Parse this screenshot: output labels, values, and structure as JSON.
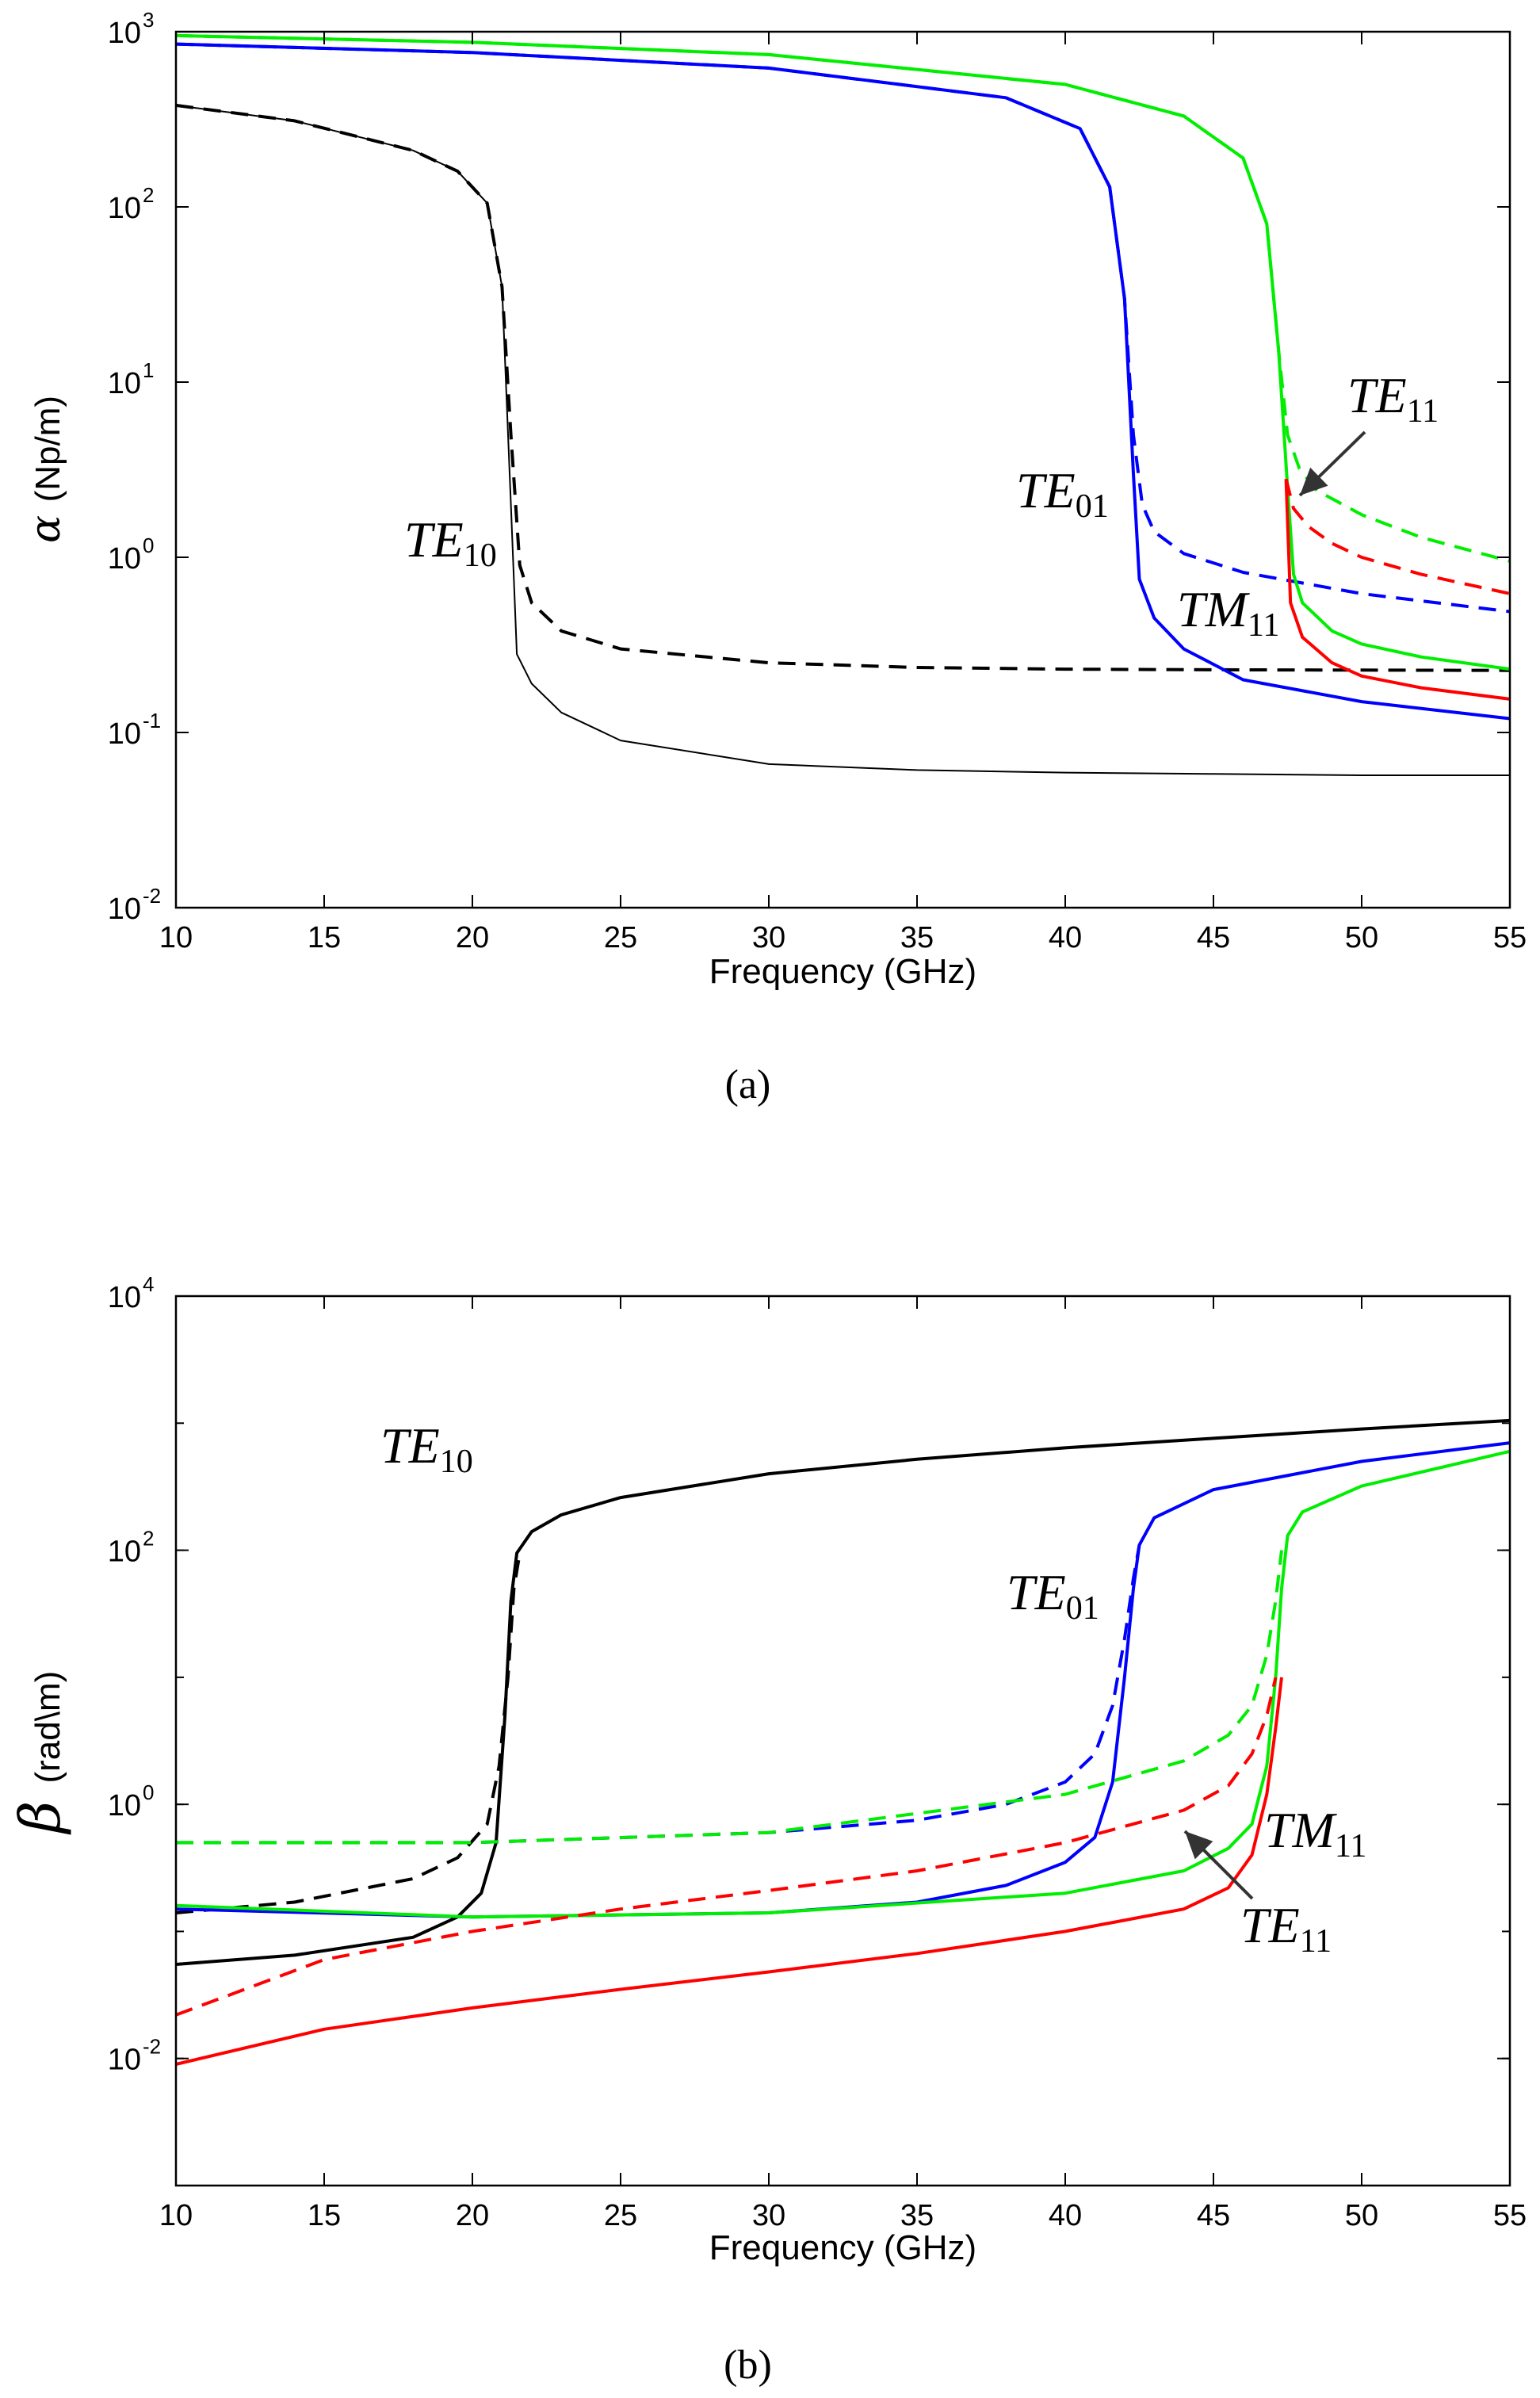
{
  "chart_data": [
    {
      "type": "line",
      "panel_caption": "(a)",
      "xlabel": "Frequency (GHz)",
      "ylabel_symbol": "α",
      "ylabel_unit": "(Np/m)",
      "xscale": "linear",
      "yscale": "log",
      "xlim": [
        10,
        55
      ],
      "ylim": [
        0.01,
        1000
      ],
      "xticks": [
        "10",
        "15",
        "20",
        "25",
        "30",
        "35",
        "40",
        "45",
        "50",
        "55"
      ],
      "yticks": [
        {
          "base": "10",
          "exp": "-2"
        },
        {
          "base": "10",
          "exp": "-1"
        },
        {
          "base": "10",
          "exp": "0"
        },
        {
          "base": "10",
          "exp": "1"
        },
        {
          "base": "10",
          "exp": "2"
        },
        {
          "base": "10",
          "exp": "3"
        }
      ],
      "grid": false,
      "series": [
        {
          "color": "#000000",
          "dash": "solid",
          "width": 2,
          "x": [
            10,
            14,
            18,
            19.5,
            20.5,
            21.0,
            21.3,
            21.5,
            22,
            23,
            25,
            30,
            35,
            40,
            45,
            50,
            55
          ],
          "y": [
            380,
            310,
            210,
            160,
            105,
            35,
            2,
            0.28,
            0.19,
            0.13,
            0.09,
            0.066,
            0.061,
            0.059,
            0.058,
            0.057,
            0.057
          ]
        },
        {
          "color": "#000000",
          "dash": "dash",
          "width": 4,
          "x": [
            10,
            14,
            18,
            19.5,
            20.5,
            21.0,
            21.3,
            21.6,
            22,
            23,
            25,
            30,
            35,
            40,
            45,
            50,
            55
          ],
          "y": [
            380,
            310,
            210,
            160,
            105,
            35,
            5,
            0.9,
            0.55,
            0.38,
            0.3,
            0.25,
            0.235,
            0.23,
            0.228,
            0.227,
            0.226
          ]
        },
        {
          "color": "#0000ff",
          "dash": "solid",
          "width": 4,
          "x": [
            10,
            20,
            30,
            38,
            40.5,
            41.5,
            42.0,
            42.3,
            42.5,
            43,
            44,
            46,
            50,
            55
          ],
          "y": [
            850,
            760,
            620,
            420,
            280,
            130,
            30,
            3,
            0.75,
            0.45,
            0.3,
            0.2,
            0.15,
            0.12
          ]
        },
        {
          "color": "#0000ff",
          "dash": "dash",
          "width": 4,
          "x": [
            10,
            20,
            30,
            38,
            40.5,
            41.5,
            42.0,
            42.3,
            42.6,
            43,
            44,
            46,
            50,
            55
          ],
          "y": [
            850,
            760,
            620,
            420,
            280,
            130,
            30,
            5,
            2.0,
            1.4,
            1.05,
            0.82,
            0.62,
            0.49
          ]
        },
        {
          "color": "#00ee00",
          "dash": "solid",
          "width": 4,
          "x": [
            10,
            20,
            30,
            40,
            44,
            46,
            46.8,
            47.2,
            47.5,
            47.7,
            48,
            49,
            50,
            52,
            55
          ],
          "y": [
            950,
            870,
            740,
            500,
            330,
            190,
            80,
            15,
            2.5,
            0.8,
            0.55,
            0.38,
            0.32,
            0.27,
            0.23
          ]
        },
        {
          "color": "#00ee00",
          "dash": "dash",
          "width": 4,
          "x": [
            10,
            20,
            30,
            40,
            44,
            46,
            46.8,
            47.2,
            47.5,
            47.9,
            48.5,
            50,
            52,
            55
          ],
          "y": [
            950,
            870,
            740,
            500,
            330,
            190,
            80,
            15,
            5,
            3.2,
            2.4,
            1.75,
            1.3,
            0.95
          ]
        },
        {
          "color": "#ff0000",
          "dash": "solid",
          "width": 4,
          "x": [
            47.45,
            47.6,
            48,
            49,
            50,
            52,
            55
          ],
          "y": [
            2.8,
            0.55,
            0.35,
            0.25,
            0.21,
            0.18,
            0.155
          ]
        },
        {
          "color": "#ff0000",
          "dash": "dash",
          "width": 4,
          "x": [
            47.45,
            47.7,
            48.2,
            49,
            50,
            52,
            55
          ],
          "y": [
            2.8,
            1.9,
            1.5,
            1.2,
            1.0,
            0.8,
            0.62
          ]
        }
      ],
      "annotations": [
        {
          "main": "TE",
          "sub": "10"
        },
        {
          "main": "TE",
          "sub": "01"
        },
        {
          "main": "TE",
          "sub": "11"
        },
        {
          "main": "TM",
          "sub": "11"
        }
      ]
    },
    {
      "type": "line",
      "panel_caption": "(b)",
      "xlabel": "Frequency (GHz)",
      "ylabel_symbol": "β",
      "ylabel_unit": "(rad\\m)",
      "xscale": "linear",
      "yscale": "log",
      "xlim": [
        10,
        55
      ],
      "ylim": [
        0.001,
        10000
      ],
      "xticks": [
        "10",
        "15",
        "20",
        "25",
        "30",
        "35",
        "40",
        "45",
        "50",
        "55"
      ],
      "yticks": [
        {
          "base": "10",
          "exp": "-2"
        },
        {
          "base": "10",
          "exp": "0"
        },
        {
          "base": "10",
          "exp": "2"
        },
        {
          "base": "10",
          "exp": "4"
        }
      ],
      "grid": false,
      "series": [
        {
          "color": "#000000",
          "dash": "solid",
          "width": 4,
          "x": [
            10,
            14,
            18,
            19.5,
            20.3,
            20.8,
            21.1,
            21.3,
            21.5,
            22,
            23,
            25,
            30,
            35,
            40,
            45,
            50,
            55
          ],
          "y": [
            0.055,
            0.065,
            0.09,
            0.13,
            0.2,
            0.5,
            5,
            40,
            95,
            140,
            190,
            260,
            400,
            520,
            640,
            760,
            900,
            1050
          ]
        },
        {
          "color": "#000000",
          "dash": "dash",
          "width": 4,
          "x": [
            10,
            14,
            18,
            19.5,
            20.5,
            20.9,
            21.2,
            21.4,
            21.6
          ],
          "y": [
            0.14,
            0.17,
            0.26,
            0.38,
            0.7,
            2,
            10,
            50,
            95
          ]
        },
        {
          "color": "#0000ff",
          "dash": "solid",
          "width": 4,
          "x": [
            10,
            20,
            30,
            35,
            38,
            40,
            41,
            41.6,
            42.0,
            42.3,
            42.5,
            43,
            45,
            50,
            55
          ],
          "y": [
            0.15,
            0.13,
            0.14,
            0.17,
            0.23,
            0.35,
            0.55,
            1.5,
            10,
            50,
            110,
            180,
            300,
            500,
            700
          ]
        },
        {
          "color": "#0000ff",
          "dash": "dash",
          "width": 4,
          "x": [
            10,
            20,
            30,
            35,
            38,
            40,
            41,
            41.6,
            42.0,
            42.3,
            42.5
          ],
          "y": [
            0.5,
            0.5,
            0.6,
            0.75,
            1.0,
            1.5,
            2.5,
            6,
            20,
            60,
            110
          ]
        },
        {
          "color": "#00ee00",
          "dash": "solid",
          "width": 4,
          "x": [
            10,
            20,
            30,
            40,
            44,
            45.5,
            46.3,
            46.8,
            47.1,
            47.3,
            47.5,
            48,
            50,
            55
          ],
          "y": [
            0.16,
            0.13,
            0.14,
            0.2,
            0.3,
            0.45,
            0.7,
            2,
            10,
            50,
            130,
            200,
            320,
            600
          ]
        },
        {
          "color": "#00ee00",
          "dash": "dash",
          "width": 4,
          "x": [
            10,
            20,
            30,
            40,
            44,
            45.5,
            46.3,
            46.8,
            47.1,
            47.3
          ],
          "y": [
            0.5,
            0.5,
            0.6,
            1.2,
            2.2,
            3.5,
            6,
            15,
            40,
            100
          ]
        },
        {
          "color": "#ff0000",
          "dash": "solid",
          "width": 4,
          "x": [
            10,
            15,
            20,
            25,
            30,
            35,
            40,
            44,
            45.5,
            46.3,
            46.8,
            47.1,
            47.3
          ],
          "y": [
            0.009,
            0.017,
            0.025,
            0.035,
            0.048,
            0.067,
            0.1,
            0.15,
            0.22,
            0.4,
            1.2,
            4,
            10
          ]
        },
        {
          "color": "#ff0000",
          "dash": "dash",
          "width": 4,
          "x": [
            10,
            15,
            20,
            25,
            30,
            35,
            40,
            44,
            45.5,
            46.3,
            46.8,
            47.1
          ],
          "y": [
            0.022,
            0.06,
            0.1,
            0.15,
            0.21,
            0.3,
            0.5,
            0.9,
            1.4,
            2.5,
            5,
            10
          ]
        }
      ],
      "annotations": [
        {
          "main": "TE",
          "sub": "10"
        },
        {
          "main": "TE",
          "sub": "01"
        },
        {
          "main": "TM",
          "sub": "11"
        },
        {
          "main": "TE",
          "sub": "11"
        }
      ]
    }
  ]
}
